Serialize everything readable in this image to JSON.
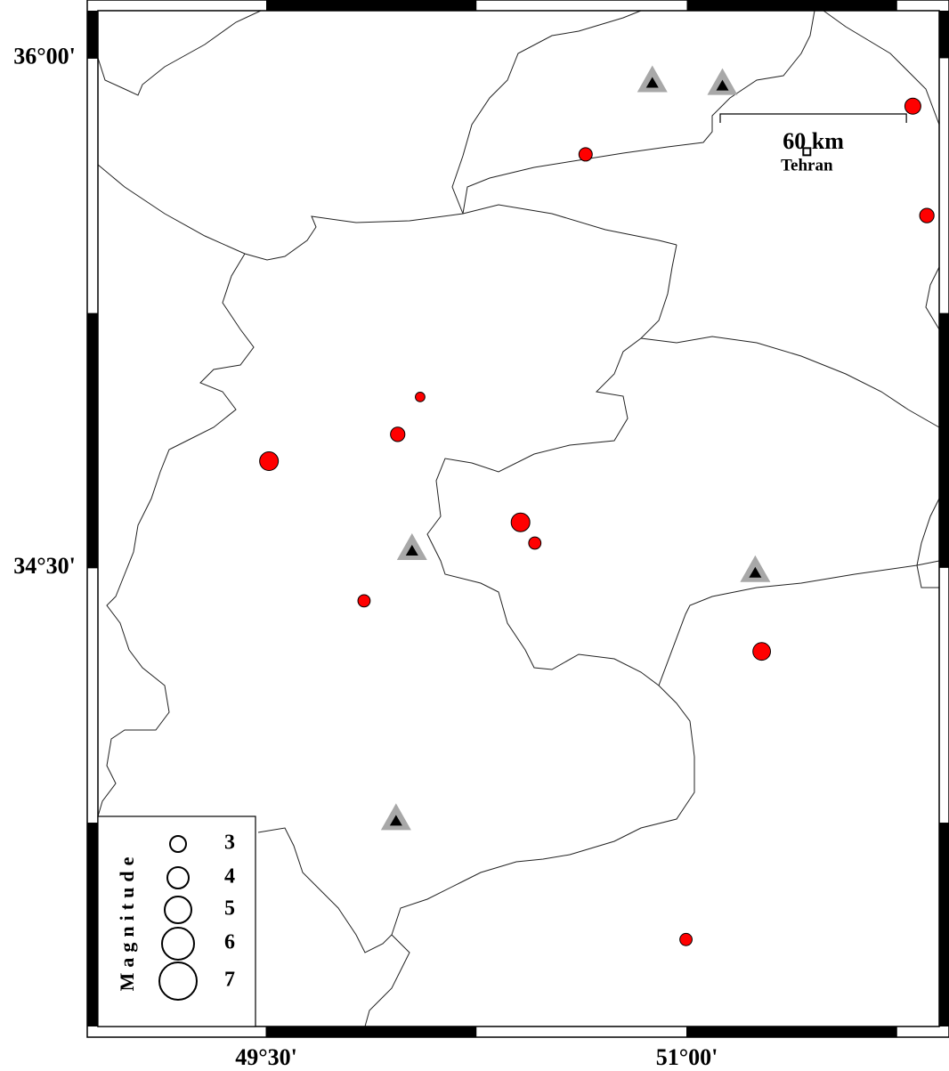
{
  "map": {
    "xlim": [
      48.9,
      51.9
    ],
    "ylim": [
      33.15,
      36.14
    ],
    "xticks": [
      {
        "value": 49.5,
        "label": "49°30'"
      },
      {
        "value": 51.0,
        "label": "51°00'"
      }
    ],
    "yticks": [
      {
        "value": 34.5,
        "label": "34°30'"
      },
      {
        "value": 36.0,
        "label": "36°00'"
      }
    ],
    "earthquakes": {
      "color": "#ff0000",
      "lon": [
        50.639,
        51.806,
        51.856,
        50.049,
        49.969,
        49.51,
        50.407,
        50.458,
        49.849,
        51.267,
        50.997
      ],
      "lat": [
        35.717,
        35.859,
        35.537,
        35.003,
        34.893,
        34.814,
        34.634,
        34.573,
        34.403,
        34.254,
        33.406
      ],
      "magnitude": [
        2.5,
        3.0,
        2.7,
        1.8,
        2.7,
        3.5,
        3.5,
        2.3,
        2.3,
        3.3,
        2.3
      ]
    },
    "stations": {
      "lon": [
        50.877,
        51.127,
        50.02,
        51.244,
        49.963
      ],
      "lat": [
        35.929,
        35.921,
        34.552,
        34.487,
        33.757
      ]
    },
    "city": {
      "name": "Tehran",
      "lon": 51.428,
      "lat": 35.725
    },
    "scale_bar": {
      "label": "60 km",
      "length_km": 60
    },
    "legend": {
      "title": "Magnitude",
      "magnitudes": [
        3,
        4,
        5,
        6,
        7
      ]
    }
  }
}
